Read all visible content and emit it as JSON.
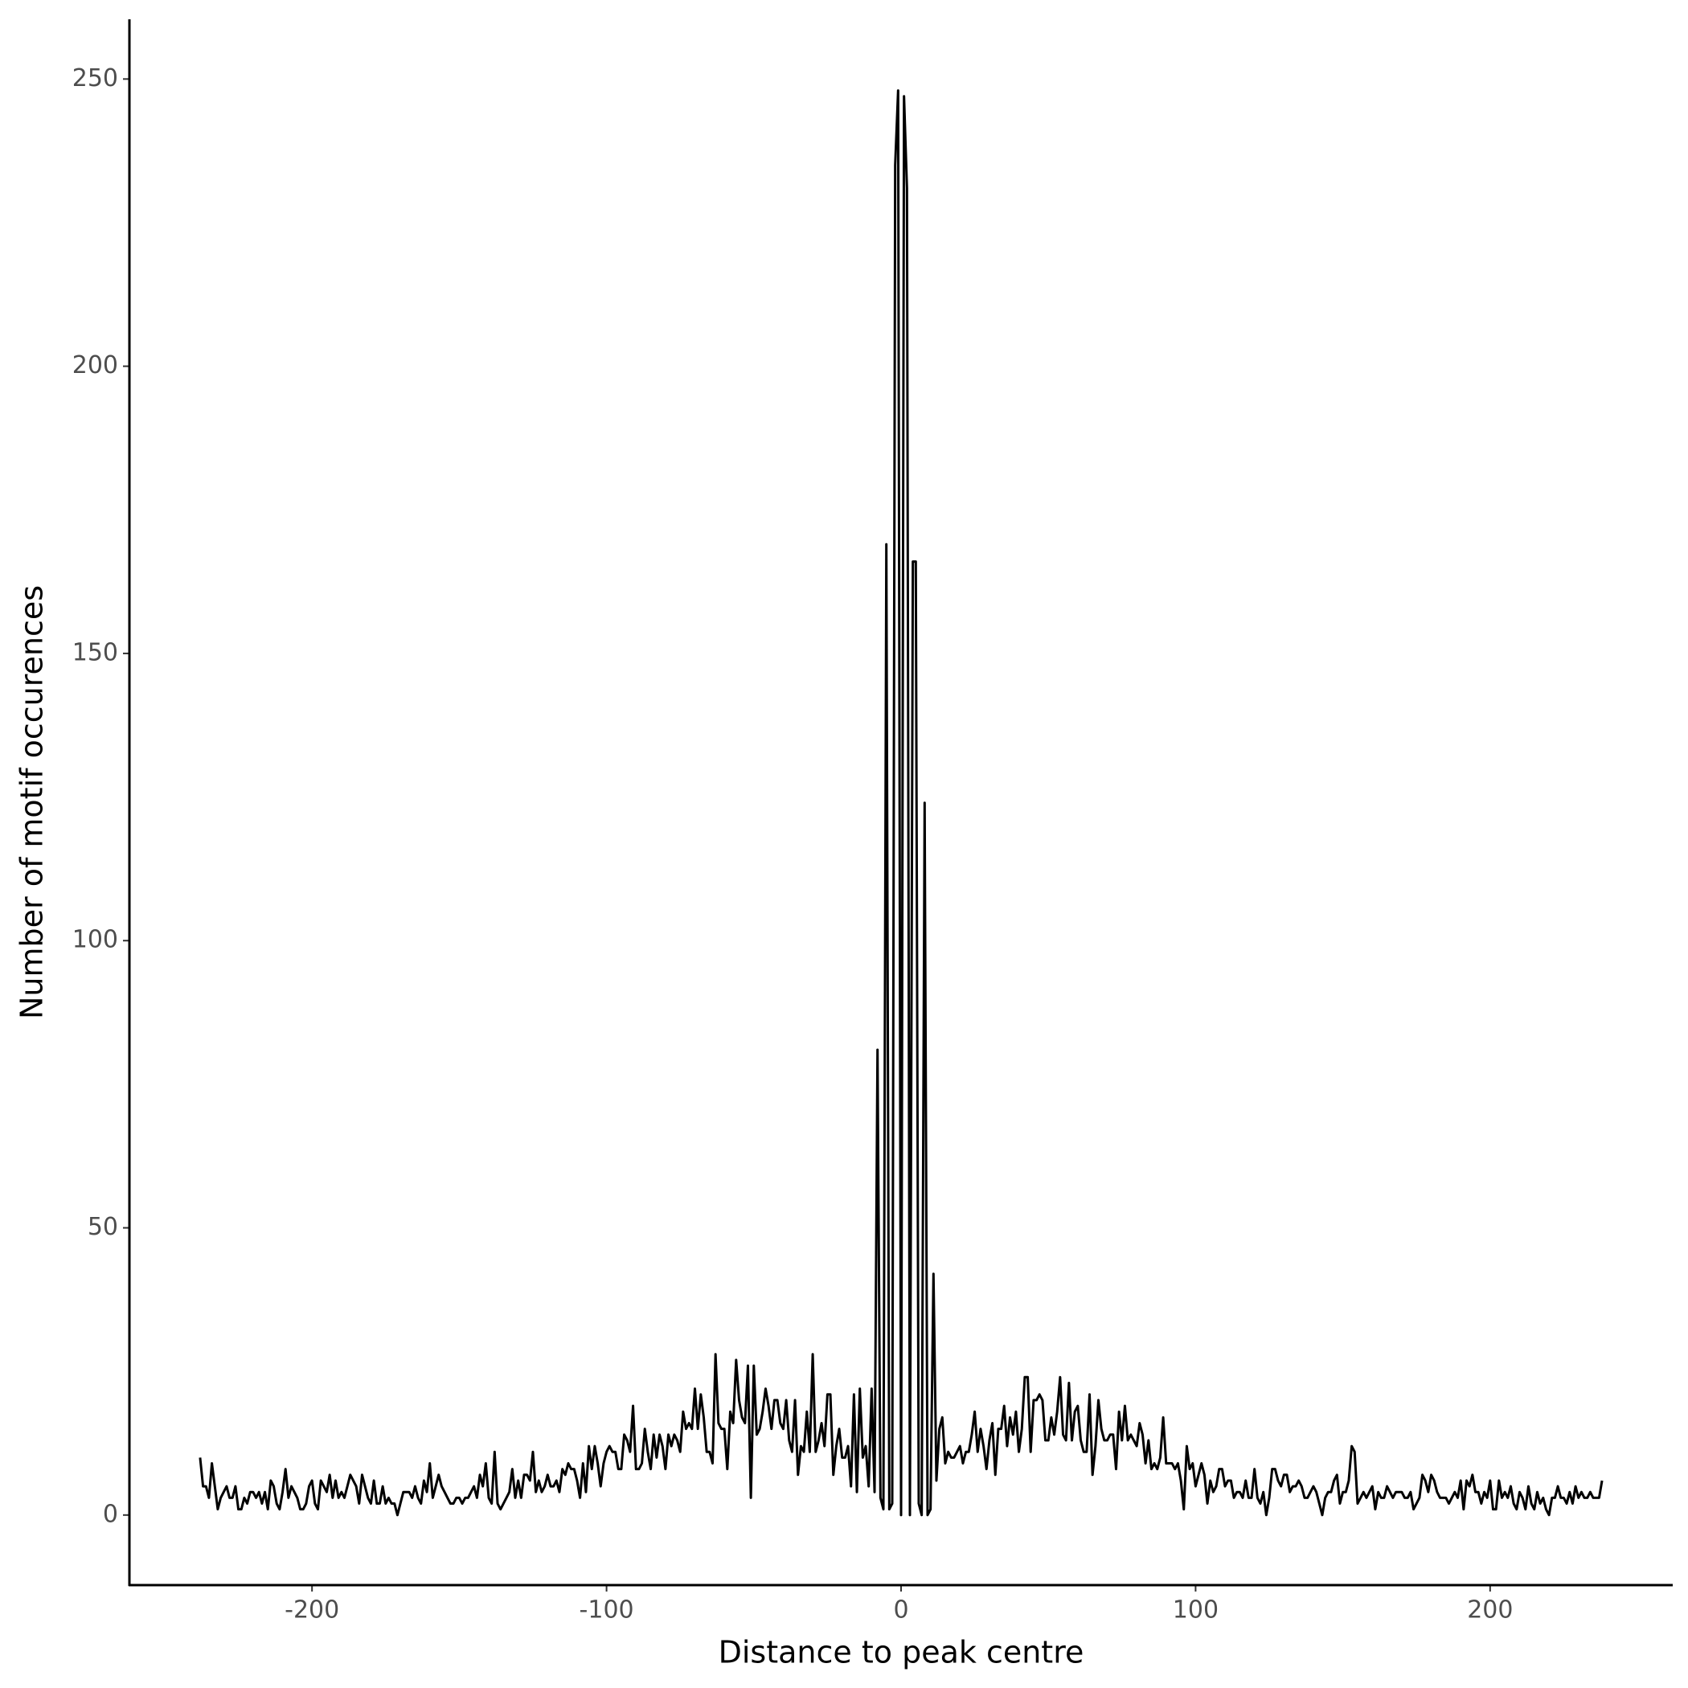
{
  "chart_data": {
    "type": "line",
    "x_label": "Distance to peak centre",
    "y_label": "Number of motif occurences",
    "color": "#000000",
    "xlim": [
      -262,
      262
    ],
    "ylim": [
      -12.2,
      260.4
    ],
    "xticks": [
      -200,
      -100,
      0,
      100,
      200
    ],
    "yticks": [
      0,
      50,
      100,
      150,
      200,
      250
    ],
    "grid": false,
    "x": [
      -238,
      -237,
      -236,
      -235,
      -234,
      -233,
      -232,
      -231,
      -230,
      -229,
      -228,
      -227,
      -226,
      -225,
      -224,
      -223,
      -222,
      -221,
      -220,
      -219,
      -218,
      -217,
      -216,
      -215,
      -214,
      -213,
      -212,
      -211,
      -210,
      -209,
      -208,
      -207,
      -206,
      -205,
      -204,
      -203,
      -202,
      -201,
      -200,
      -199,
      -198,
      -197,
      -196,
      -195,
      -194,
      -193,
      -192,
      -191,
      -190,
      -189,
      -188,
      -187,
      -186,
      -185,
      -184,
      -183,
      -182,
      -181,
      -180,
      -179,
      -178,
      -177,
      -176,
      -175,
      -174,
      -173,
      -172,
      -171,
      -170,
      -169,
      -168,
      -167,
      -166,
      -165,
      -164,
      -163,
      -162,
      -161,
      -160,
      -159,
      -158,
      -157,
      -156,
      -155,
      -154,
      -153,
      -152,
      -151,
      -150,
      -149,
      -148,
      -147,
      -146,
      -145,
      -144,
      -143,
      -142,
      -141,
      -140,
      -139,
      -138,
      -137,
      -136,
      -135,
      -134,
      -133,
      -132,
      -131,
      -130,
      -129,
      -128,
      -127,
      -126,
      -125,
      -124,
      -123,
      -122,
      -121,
      -120,
      -119,
      -118,
      -117,
      -116,
      -115,
      -114,
      -113,
      -112,
      -111,
      -110,
      -109,
      -108,
      -107,
      -106,
      -105,
      -104,
      -103,
      -102,
      -101,
      -100,
      -99,
      -98,
      -97,
      -96,
      -95,
      -94,
      -93,
      -92,
      -91,
      -90,
      -89,
      -88,
      -87,
      -86,
      -85,
      -84,
      -83,
      -82,
      -81,
      -80,
      -79,
      -78,
      -77,
      -76,
      -75,
      -74,
      -73,
      -72,
      -71,
      -70,
      -69,
      -68,
      -67,
      -66,
      -65,
      -64,
      -63,
      -62,
      -61,
      -60,
      -59,
      -58,
      -57,
      -56,
      -55,
      -54,
      -53,
      -52,
      -51,
      -50,
      -49,
      -48,
      -47,
      -46,
      -45,
      -44,
      -43,
      -42,
      -41,
      -40,
      -39,
      -38,
      -37,
      -36,
      -35,
      -34,
      -33,
      -32,
      -31,
      -30,
      -29,
      -28,
      -27,
      -26,
      -25,
      -24,
      -23,
      -22,
      -21,
      -20,
      -19,
      -18,
      -17,
      -16,
      -15,
      -14,
      -13,
      -12,
      -11,
      -10,
      -9,
      -8,
      -7,
      -6,
      -5,
      -4,
      -3,
      -2,
      -1,
      0,
      1,
      2,
      3,
      4,
      5,
      6,
      7,
      8,
      9,
      10,
      11,
      12,
      13,
      14,
      15,
      16,
      17,
      18,
      19,
      20,
      21,
      22,
      23,
      24,
      25,
      26,
      27,
      28,
      29,
      30,
      31,
      32,
      33,
      34,
      35,
      36,
      37,
      38,
      39,
      40,
      41,
      42,
      43,
      44,
      45,
      46,
      47,
      48,
      49,
      50,
      51,
      52,
      53,
      54,
      55,
      56,
      57,
      58,
      59,
      60,
      61,
      62,
      63,
      64,
      65,
      66,
      67,
      68,
      69,
      70,
      71,
      72,
      73,
      74,
      75,
      76,
      77,
      78,
      79,
      80,
      81,
      82,
      83,
      84,
      85,
      86,
      87,
      88,
      89,
      90,
      91,
      92,
      93,
      94,
      95,
      96,
      97,
      98,
      99,
      100,
      101,
      102,
      103,
      104,
      105,
      106,
      107,
      108,
      109,
      110,
      111,
      112,
      113,
      114,
      115,
      116,
      117,
      118,
      119,
      120,
      121,
      122,
      123,
      124,
      125,
      126,
      127,
      128,
      129,
      130,
      131,
      132,
      133,
      134,
      135,
      136,
      137,
      138,
      139,
      140,
      141,
      142,
      143,
      144,
      145,
      146,
      147,
      148,
      149,
      150,
      151,
      152,
      153,
      154,
      155,
      156,
      157,
      158,
      159,
      160,
      161,
      162,
      163,
      164,
      165,
      166,
      167,
      168,
      169,
      170,
      171,
      172,
      173,
      174,
      175,
      176,
      177,
      178,
      179,
      180,
      181,
      182,
      183,
      184,
      185,
      186,
      187,
      188,
      189,
      190,
      191,
      192,
      193,
      194,
      195,
      196,
      197,
      198,
      199,
      200,
      201,
      202,
      203,
      204,
      205,
      206,
      207,
      208,
      209,
      210,
      211,
      212,
      213,
      214,
      215,
      216,
      217,
      218,
      219,
      220,
      221,
      222,
      223,
      224,
      225,
      226,
      227,
      228,
      229,
      230,
      231,
      232,
      233,
      234,
      235,
      236,
      237,
      238
    ],
    "values": [
      10,
      5,
      5,
      3,
      9,
      5,
      1,
      3,
      4,
      5,
      3,
      3,
      5,
      1,
      1,
      3,
      2,
      4,
      4,
      3,
      4,
      2,
      4,
      1,
      6,
      5,
      2,
      1,
      4,
      8,
      3,
      5,
      4,
      3,
      1,
      1,
      2,
      5,
      6,
      2,
      1,
      6,
      5,
      4,
      7,
      3,
      6,
      3,
      4,
      3,
      5,
      7,
      6,
      5,
      2,
      7,
      5,
      3,
      2,
      6,
      2,
      2,
      5,
      2,
      3,
      2,
      2,
      0,
      2,
      4,
      4,
      4,
      3,
      5,
      3,
      2,
      6,
      4,
      9,
      3,
      5,
      7,
      5,
      4,
      3,
      2,
      2,
      3,
      3,
      2,
      3,
      3,
      4,
      5,
      3,
      7,
      5,
      9,
      3,
      2,
      11,
      2,
      1,
      2,
      3,
      4,
      8,
      3,
      6,
      3,
      7,
      7,
      6,
      11,
      4,
      6,
      4,
      5,
      7,
      5,
      5,
      6,
      4,
      8,
      7,
      9,
      8,
      8,
      6,
      3,
      9,
      4,
      12,
      8,
      12,
      9,
      5,
      9,
      11,
      12,
      11,
      11,
      8,
      8,
      14,
      13,
      11,
      19,
      8,
      8,
      9,
      15,
      11,
      8,
      14,
      10,
      14,
      12,
      8,
      14,
      12,
      14,
      13,
      11,
      18,
      15,
      16,
      15,
      22,
      15,
      21,
      17,
      11,
      11,
      9,
      28,
      16,
      15,
      15,
      8,
      18,
      16,
      27,
      20,
      17,
      16,
      26,
      3,
      26,
      14,
      15,
      18,
      22,
      19,
      15,
      20,
      20,
      16,
      15,
      20,
      13,
      11,
      20,
      7,
      12,
      11,
      18,
      11,
      28,
      11,
      13,
      16,
      12,
      21,
      21,
      7,
      12,
      15,
      10,
      10,
      12,
      5,
      21,
      4,
      22,
      10,
      12,
      5,
      22,
      4,
      81,
      3,
      1,
      169,
      1,
      2,
      235,
      248,
      0,
      247,
      231,
      0,
      166,
      166,
      2,
      0,
      124,
      0,
      1,
      42,
      6,
      15,
      17,
      9,
      11,
      10,
      10,
      11,
      12,
      9,
      11,
      11,
      14,
      18,
      11,
      15,
      12,
      8,
      13,
      16,
      7,
      15,
      15,
      19,
      12,
      17,
      14,
      18,
      11,
      15,
      24,
      24,
      11,
      20,
      20,
      21,
      20,
      13,
      13,
      17,
      14,
      18,
      24,
      14,
      13,
      23,
      13,
      18,
      19,
      13,
      11,
      11,
      21,
      7,
      12,
      20,
      15,
      13,
      13,
      14,
      14,
      8,
      18,
      13,
      19,
      13,
      14,
      13,
      12,
      16,
      14,
      9,
      13,
      8,
      9,
      8,
      10,
      17,
      9,
      9,
      9,
      8,
      9,
      6,
      1,
      12,
      8,
      9,
      5,
      7,
      9,
      7,
      2,
      6,
      4,
      5,
      8,
      8,
      5,
      6,
      6,
      3,
      4,
      4,
      3,
      6,
      3,
      3,
      8,
      3,
      2,
      4,
      0,
      3,
      8,
      8,
      6,
      5,
      7,
      7,
      4,
      5,
      5,
      6,
      5,
      3,
      3,
      4,
      5,
      4,
      2,
      0,
      3,
      4,
      4,
      6,
      7,
      2,
      4,
      4,
      6,
      12,
      11,
      2,
      3,
      4,
      3,
      4,
      5,
      1,
      4,
      3,
      3,
      5,
      4,
      3,
      4,
      4,
      4,
      3,
      3,
      4,
      1,
      2,
      3,
      7,
      6,
      4,
      7,
      6,
      4,
      3,
      3,
      3,
      2,
      3,
      4,
      3,
      6,
      1,
      6,
      5,
      7,
      4,
      4,
      2,
      4,
      3,
      6,
      1,
      1,
      6,
      3,
      4,
      3,
      5,
      2,
      1,
      4,
      3,
      1,
      5,
      2,
      1,
      4,
      2,
      3,
      1,
      0,
      3,
      3,
      5,
      3,
      3,
      2,
      4,
      2,
      5,
      3,
      4,
      3,
      3,
      4,
      3,
      3,
      3,
      6
    ]
  }
}
